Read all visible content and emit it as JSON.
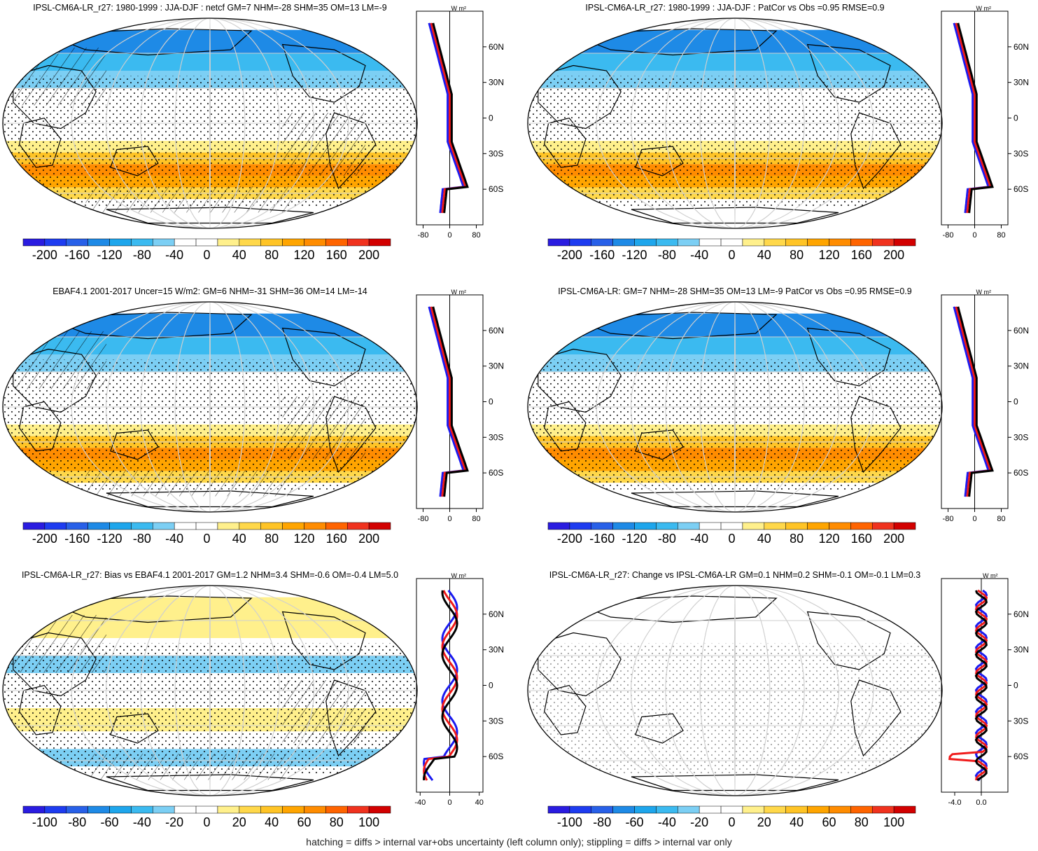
{
  "footer": "hatching = diffs > internal var+obs uncertainty (left column only); stippling = diffs > internal var only",
  "profile_unit": "W m²",
  "lat_labels": [
    "60N",
    "30N",
    "0",
    "30S",
    "60S"
  ],
  "colors": {
    "scale_main": [
      "#2a1ce0",
      "#1e3cf0",
      "#2860e8",
      "#1e8ae6",
      "#1ea6ec",
      "#3bbaf0",
      "#7ccff4",
      "#ffffff",
      "#ffffff",
      "#fff08c",
      "#ffd84a",
      "#ffc426",
      "#ffa500",
      "#ff8c00",
      "#ff6400",
      "#f0321e",
      "#d20000"
    ],
    "land_outline": "#000000",
    "grid": "#cfcfcf"
  },
  "chart_data": [
    {
      "type": "map",
      "panel": "top-left",
      "title": "IPSL-CM6A-LR_r27: 1980-1999 : JJA-DJF : netcf GM=7 NHM=-28 SHM=35 OM=13 LM=-9",
      "colorbar_ticks": [
        "-200",
        "-160",
        "-120",
        "-80",
        "-40",
        "0",
        "40",
        "80",
        "120",
        "160",
        "200"
      ],
      "hatching": true,
      "stippling": true,
      "profile": {
        "xticks": [
          "-80",
          "0",
          "80"
        ],
        "xlim": [
          -100,
          100
        ],
        "series": [
          {
            "color": "blue"
          },
          {
            "color": "red"
          },
          {
            "color": "black"
          }
        ]
      }
    },
    {
      "type": "map",
      "panel": "top-right",
      "title": "IPSL-CM6A-LR_r27: 1980-1999 : JJA-DJF : PatCor vs Obs =0.95 RMSE=0.9",
      "colorbar_ticks": [
        "-200",
        "-160",
        "-120",
        "-80",
        "-40",
        "0",
        "40",
        "80",
        "120",
        "160",
        "200"
      ],
      "hatching": false,
      "stippling": true,
      "profile": {
        "xticks": [
          "-80",
          "0",
          "80"
        ],
        "xlim": [
          -100,
          100
        ],
        "series": [
          {
            "color": "blue"
          },
          {
            "color": "red"
          },
          {
            "color": "black"
          }
        ]
      }
    },
    {
      "type": "map",
      "panel": "middle-left",
      "title": "EBAF4.1 2001-2017 Uncer=15 W/m2: GM=6 NHM=-31 SHM=36 OM=14 LM=-14",
      "colorbar_ticks": [
        "-200",
        "-160",
        "-120",
        "-80",
        "-40",
        "0",
        "40",
        "80",
        "120",
        "160",
        "200"
      ],
      "hatching": true,
      "stippling": true,
      "profile": {
        "xticks": [
          "-80",
          "0",
          "80"
        ],
        "xlim": [
          -100,
          100
        ],
        "series": [
          {
            "color": "blue"
          },
          {
            "color": "red"
          },
          {
            "color": "black"
          }
        ]
      }
    },
    {
      "type": "map",
      "panel": "middle-right",
      "title": "IPSL-CM6A-LR: GM=7 NHM=-28 SHM=35 OM=13 LM=-9 PatCor vs Obs =0.95 RMSE=0.9",
      "colorbar_ticks": [
        "-200",
        "-160",
        "-120",
        "-80",
        "-40",
        "0",
        "40",
        "80",
        "120",
        "160",
        "200"
      ],
      "hatching": false,
      "stippling": true,
      "profile": {
        "xticks": [
          "-80",
          "0",
          "80"
        ],
        "xlim": [
          -100,
          100
        ],
        "series": [
          {
            "color": "blue"
          },
          {
            "color": "red"
          },
          {
            "color": "black"
          }
        ]
      }
    },
    {
      "type": "map",
      "panel": "bottom-left",
      "title": "IPSL-CM6A-LR_r27: Bias vs EBAF4.1 2001-2017 GM=1.2 NHM=3.4 SHM=-0.6 OM=-0.4 LM=5.0",
      "colorbar_ticks": [
        "-100",
        "-80",
        "-60",
        "-40",
        "-20",
        "0",
        "20",
        "40",
        "60",
        "80",
        "100"
      ],
      "hatching": true,
      "stippling": true,
      "profile": {
        "xticks": [
          "-40",
          "0",
          "40"
        ],
        "xlim": [
          -45,
          45
        ],
        "series": [
          {
            "color": "blue"
          },
          {
            "color": "red"
          },
          {
            "color": "black"
          }
        ]
      }
    },
    {
      "type": "map",
      "panel": "bottom-right",
      "title": "IPSL-CM6A-LR_r27: Change vs IPSL-CM6A-LR GM=0.1 NHM=0.2 SHM=-0.1 OM=-0.1 LM=0.3",
      "colorbar_ticks": [
        "-100",
        "-80",
        "-60",
        "-40",
        "-20",
        "0",
        "20",
        "40",
        "60",
        "80",
        "100"
      ],
      "hatching": false,
      "stippling": true,
      "profile": {
        "xticks": [
          "-4.0",
          "0.0"
        ],
        "xlim": [
          -6,
          4
        ],
        "series": [
          {
            "color": "blue"
          },
          {
            "color": "red"
          },
          {
            "color": "black"
          }
        ]
      }
    }
  ]
}
